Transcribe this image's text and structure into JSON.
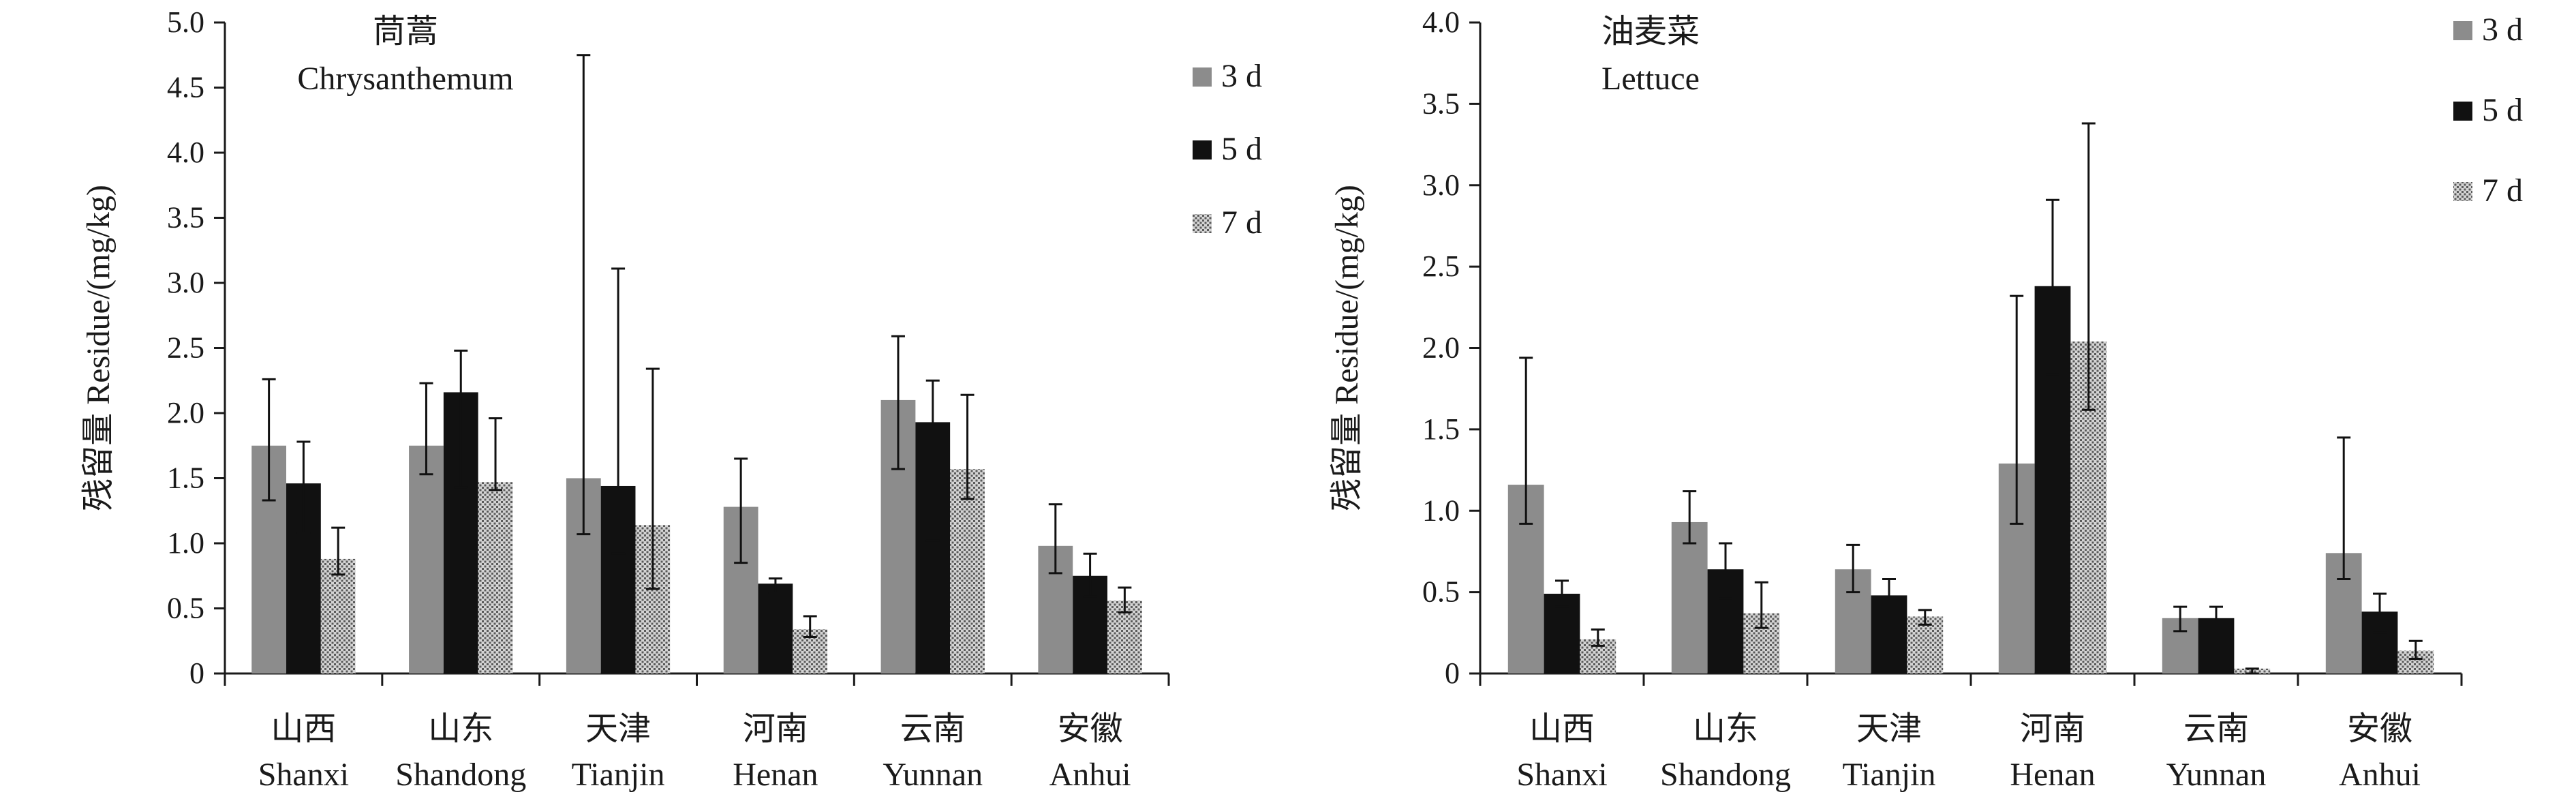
{
  "colors": {
    "day3": "#8c8c8c",
    "day5": "#111111",
    "day7_base": "#d4d4d4",
    "day7_dot": "#5a5a5a",
    "axis": "#1a1a1a",
    "text": "#1a1a1a"
  },
  "chart_data": [
    {
      "type": "bar",
      "title_cn": "茼蒿",
      "title_en": "Chrysanthemum",
      "ylabel": "残留量 Residue/(mg/kg)",
      "xlabel": "",
      "ylim": [
        0,
        5.0
      ],
      "ytick_step": 0.5,
      "ytick_labels": [
        "0",
        "0.5",
        "1.0",
        "1.5",
        "2.0",
        "2.5",
        "3.0",
        "3.5",
        "4.0",
        "4.5",
        "5.0"
      ],
      "categories_cn": [
        "山西",
        "山东",
        "天津",
        "河南",
        "云南",
        "安徽"
      ],
      "categories_en": [
        "Shanxi",
        "Shandong",
        "Tianjin",
        "Henan",
        "Yunnan",
        "Anhui"
      ],
      "legend_position": "top-right",
      "series": [
        {
          "name": "3 d",
          "values": [
            1.75,
            1.75,
            1.5,
            1.28,
            2.1,
            0.98
          ],
          "err_low": [
            1.33,
            1.53,
            1.07,
            0.85,
            1.57,
            0.77
          ],
          "err_high": [
            2.26,
            2.23,
            4.75,
            1.65,
            2.59,
            1.3
          ]
        },
        {
          "name": "5 d",
          "values": [
            1.46,
            2.16,
            1.44,
            0.69,
            1.93,
            0.75
          ],
          "err_low": [
            1.08,
            1.43,
            0.92,
            0.62,
            1.02,
            0.59
          ],
          "err_high": [
            1.78,
            2.48,
            3.11,
            0.73,
            2.25,
            0.92
          ]
        },
        {
          "name": "7 d",
          "values": [
            0.88,
            1.47,
            1.14,
            0.34,
            1.57,
            0.56
          ],
          "err_low": [
            0.76,
            1.41,
            0.65,
            0.28,
            1.34,
            0.47
          ],
          "err_high": [
            1.12,
            1.96,
            2.34,
            0.44,
            2.14,
            0.66
          ]
        }
      ]
    },
    {
      "type": "bar",
      "title_cn": "油麦菜",
      "title_en": "Lettuce",
      "ylabel": "残留量 Residue/(mg/kg)",
      "xlabel": "",
      "ylim": [
        0,
        4.0
      ],
      "ytick_step": 0.5,
      "ytick_labels": [
        "0",
        "0.5",
        "1.0",
        "1.5",
        "2.0",
        "2.5",
        "3.0",
        "3.5",
        "4.0"
      ],
      "categories_cn": [
        "山西",
        "山东",
        "天津",
        "河南",
        "云南",
        "安徽"
      ],
      "categories_en": [
        "Shanxi",
        "Shandong",
        "Tianjin",
        "Henan",
        "Yunnan",
        "Anhui"
      ],
      "legend_position": "top-right",
      "series": [
        {
          "name": "3 d",
          "values": [
            1.16,
            0.93,
            0.64,
            1.29,
            0.34,
            0.74
          ],
          "err_low": [
            0.92,
            0.8,
            0.5,
            0.92,
            0.26,
            0.58
          ],
          "err_high": [
            1.94,
            1.12,
            0.79,
            2.32,
            0.41,
            1.45
          ]
        },
        {
          "name": "5 d",
          "values": [
            0.49,
            0.64,
            0.48,
            2.38,
            0.34,
            0.38
          ],
          "err_low": [
            0.41,
            0.46,
            0.39,
            1.84,
            0.27,
            0.25
          ],
          "err_high": [
            0.57,
            0.8,
            0.58,
            2.91,
            0.41,
            0.49
          ]
        },
        {
          "name": "7 d",
          "values": [
            0.21,
            0.37,
            0.35,
            2.04,
            0.03,
            0.14
          ],
          "err_low": [
            0.17,
            0.28,
            0.3,
            1.62,
            0.0,
            0.09
          ],
          "err_high": [
            0.27,
            0.56,
            0.39,
            3.38,
            0.03,
            0.2
          ]
        }
      ]
    }
  ]
}
